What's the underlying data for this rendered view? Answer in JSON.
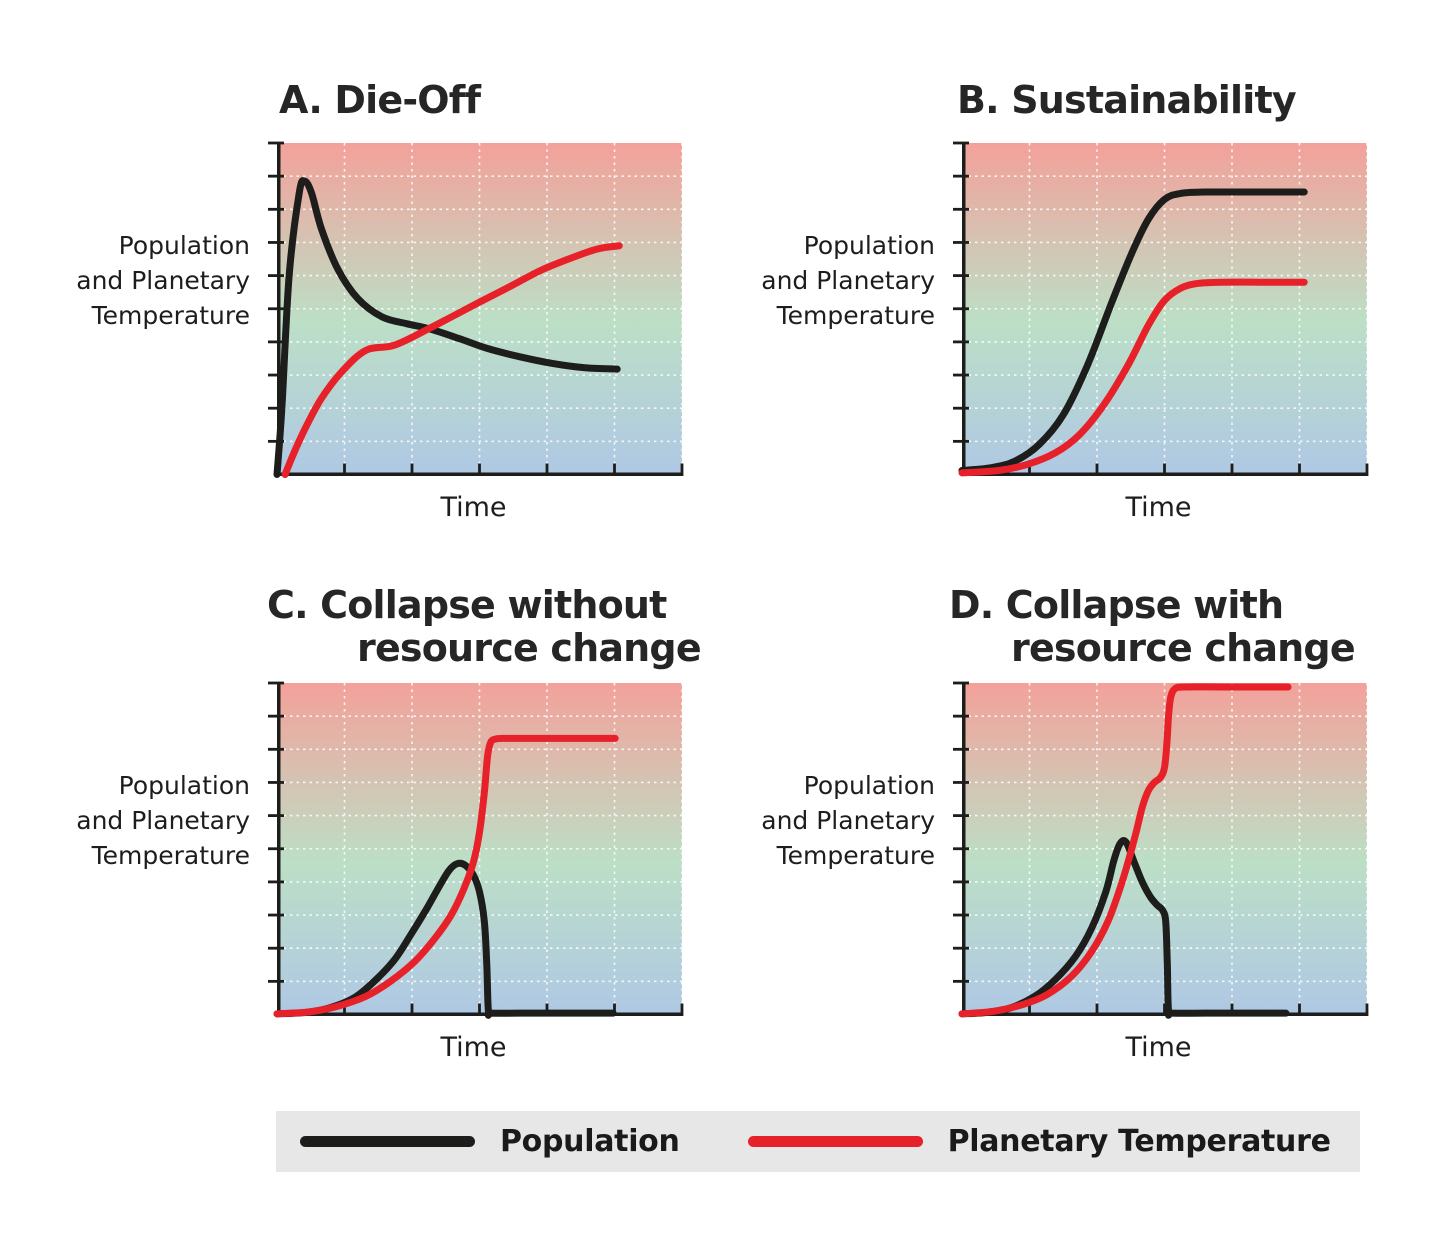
{
  "figure": {
    "y_axis_label_lines": [
      "Population",
      "and Planetary",
      "Temperature"
    ],
    "x_axis_label": "Time"
  },
  "colors": {
    "population_line": "#1d1d1b",
    "temperature_line": "#e62129",
    "gradient_top": "#f3a19a",
    "gradient_middle": "#bcdfc6",
    "gradient_bottom": "#afc8e4",
    "gridline": "#ffffff",
    "axis": "#1d1d1b",
    "title_text": "#262626",
    "legend_background": "#e7e7e8"
  },
  "legend": {
    "items": [
      {
        "label": "Population",
        "series": "population",
        "color": "#1d1d1b"
      },
      {
        "label": "Planetary Temperature",
        "series": "temperature",
        "color": "#e62129"
      }
    ]
  },
  "chart_data": {
    "type": "line",
    "note": "Qualitative conceptual plots: axes are unlabeled magnitudes; values normalized 0-1 (x = fraction of Time axis, y = fraction of vertical axis).",
    "shared_xlabel": "Time",
    "shared_ylabel": "Population and Planetary Temperature",
    "x_range": [
      0,
      1
    ],
    "y_range": [
      0,
      1
    ],
    "grid": {
      "x_divisions": 6,
      "y_divisions": 10,
      "style": "white dashed"
    },
    "legend_position": "bottom",
    "panels": [
      {
        "id": "A",
        "title_lines": [
          "A. Die-Off"
        ],
        "xlabel": "Time",
        "series": [
          {
            "name": "Population",
            "key": "population",
            "points": [
              [
                0,
                0
              ],
              [
                0.012,
                0.2
              ],
              [
                0.03,
                0.6
              ],
              [
                0.055,
                0.85
              ],
              [
                0.068,
                0.885
              ],
              [
                0.085,
                0.85
              ],
              [
                0.11,
                0.74
              ],
              [
                0.15,
                0.62
              ],
              [
                0.2,
                0.53
              ],
              [
                0.26,
                0.475
              ],
              [
                0.32,
                0.455
              ],
              [
                0.375,
                0.44
              ],
              [
                0.45,
                0.41
              ],
              [
                0.52,
                0.38
              ],
              [
                0.6,
                0.355
              ],
              [
                0.68,
                0.335
              ],
              [
                0.76,
                0.322
              ],
              [
                0.84,
                0.318
              ]
            ]
          },
          {
            "name": "Planetary Temperature",
            "key": "temperature",
            "points": [
              [
                0.02,
                0
              ],
              [
                0.04,
                0.06
              ],
              [
                0.07,
                0.14
              ],
              [
                0.11,
                0.23
              ],
              [
                0.16,
                0.31
              ],
              [
                0.22,
                0.375
              ],
              [
                0.29,
                0.39
              ],
              [
                0.375,
                0.44
              ],
              [
                0.43,
                0.475
              ],
              [
                0.5,
                0.52
              ],
              [
                0.58,
                0.57
              ],
              [
                0.65,
                0.615
              ],
              [
                0.72,
                0.65
              ],
              [
                0.79,
                0.68
              ],
              [
                0.845,
                0.69
              ]
            ]
          }
        ]
      },
      {
        "id": "B",
        "title_lines": [
          "B. Sustainability"
        ],
        "xlabel": "Time",
        "series": [
          {
            "name": "Population",
            "key": "population",
            "points": [
              [
                0,
                0.012
              ],
              [
                0.07,
                0.02
              ],
              [
                0.13,
                0.04
              ],
              [
                0.19,
                0.09
              ],
              [
                0.25,
                0.18
              ],
              [
                0.31,
                0.33
              ],
              [
                0.37,
                0.52
              ],
              [
                0.42,
                0.67
              ],
              [
                0.46,
                0.77
              ],
              [
                0.5,
                0.83
              ],
              [
                0.54,
                0.848
              ],
              [
                0.6,
                0.852
              ],
              [
                0.7,
                0.852
              ],
              [
                0.845,
                0.852
              ]
            ]
          },
          {
            "name": "Planetary Temperature",
            "key": "temperature",
            "points": [
              [
                0,
                0.005
              ],
              [
                0.09,
                0.012
              ],
              [
                0.16,
                0.03
              ],
              [
                0.23,
                0.065
              ],
              [
                0.29,
                0.12
              ],
              [
                0.35,
                0.21
              ],
              [
                0.41,
                0.33
              ],
              [
                0.46,
                0.45
              ],
              [
                0.5,
                0.525
              ],
              [
                0.54,
                0.562
              ],
              [
                0.58,
                0.576
              ],
              [
                0.64,
                0.58
              ],
              [
                0.74,
                0.58
              ],
              [
                0.845,
                0.58
              ]
            ]
          }
        ]
      },
      {
        "id": "C",
        "title_lines": [
          "C. Collapse without",
          "resource change"
        ],
        "xlabel": "Time",
        "series": [
          {
            "name": "Population",
            "key": "population",
            "points": [
              [
                0,
                0.002
              ],
              [
                0.07,
                0.006
              ],
              [
                0.13,
                0.02
              ],
              [
                0.19,
                0.05
              ],
              [
                0.24,
                0.1
              ],
              [
                0.29,
                0.165
              ],
              [
                0.33,
                0.24
              ],
              [
                0.37,
                0.32
              ],
              [
                0.4,
                0.385
              ],
              [
                0.425,
                0.435
              ],
              [
                0.445,
                0.455
              ],
              [
                0.465,
                0.45
              ],
              [
                0.485,
                0.42
              ],
              [
                0.5,
                0.37
              ],
              [
                0.512,
                0.28
              ],
              [
                0.518,
                0.15
              ],
              [
                0.522,
                0.01
              ],
              [
                0.53,
                0.004
              ],
              [
                0.6,
                0.004
              ],
              [
                0.7,
                0.004
              ],
              [
                0.83,
                0.004
              ]
            ]
          },
          {
            "name": "Planetary Temperature",
            "key": "temperature",
            "points": [
              [
                0,
                0.002
              ],
              [
                0.08,
                0.008
              ],
              [
                0.15,
                0.025
              ],
              [
                0.22,
                0.055
              ],
              [
                0.28,
                0.1
              ],
              [
                0.34,
                0.16
              ],
              [
                0.39,
                0.23
              ],
              [
                0.43,
                0.3
              ],
              [
                0.46,
                0.375
              ],
              [
                0.485,
                0.46
              ],
              [
                0.5,
                0.55
              ],
              [
                0.512,
                0.67
              ],
              [
                0.52,
                0.78
              ],
              [
                0.528,
                0.822
              ],
              [
                0.54,
                0.831
              ],
              [
                0.56,
                0.833
              ],
              [
                0.65,
                0.833
              ],
              [
                0.75,
                0.833
              ],
              [
                0.835,
                0.833
              ]
            ]
          }
        ]
      },
      {
        "id": "D",
        "title_lines": [
          "D. Collapse with",
          "resource change"
        ],
        "xlabel": "Time",
        "series": [
          {
            "name": "Population",
            "key": "population",
            "points": [
              [
                0,
                0.002
              ],
              [
                0.06,
                0.006
              ],
              [
                0.12,
                0.02
              ],
              [
                0.18,
                0.055
              ],
              [
                0.23,
                0.105
              ],
              [
                0.28,
                0.175
              ],
              [
                0.32,
                0.26
              ],
              [
                0.355,
                0.37
              ],
              [
                0.375,
                0.465
              ],
              [
                0.39,
                0.515
              ],
              [
                0.405,
                0.52
              ],
              [
                0.425,
                0.46
              ],
              [
                0.445,
                0.4
              ],
              [
                0.465,
                0.355
              ],
              [
                0.482,
                0.33
              ],
              [
                0.495,
                0.315
              ],
              [
                0.503,
                0.28
              ],
              [
                0.507,
                0.15
              ],
              [
                0.51,
                0.01
              ],
              [
                0.52,
                0.004
              ],
              [
                0.6,
                0.004
              ],
              [
                0.7,
                0.004
              ],
              [
                0.8,
                0.004
              ]
            ]
          },
          {
            "name": "Planetary Temperature",
            "key": "temperature",
            "points": [
              [
                0,
                0.002
              ],
              [
                0.08,
                0.01
              ],
              [
                0.15,
                0.03
              ],
              [
                0.21,
                0.06
              ],
              [
                0.27,
                0.115
              ],
              [
                0.32,
                0.19
              ],
              [
                0.36,
                0.28
              ],
              [
                0.39,
                0.38
              ],
              [
                0.41,
                0.46
              ],
              [
                0.43,
                0.55
              ],
              [
                0.445,
                0.625
              ],
              [
                0.46,
                0.675
              ],
              [
                0.475,
                0.7
              ],
              [
                0.49,
                0.715
              ],
              [
                0.5,
                0.745
              ],
              [
                0.506,
                0.82
              ],
              [
                0.51,
                0.9
              ],
              [
                0.515,
                0.955
              ],
              [
                0.525,
                0.982
              ],
              [
                0.55,
                0.988
              ],
              [
                0.65,
                0.988
              ],
              [
                0.805,
                0.988
              ]
            ]
          }
        ]
      }
    ]
  }
}
